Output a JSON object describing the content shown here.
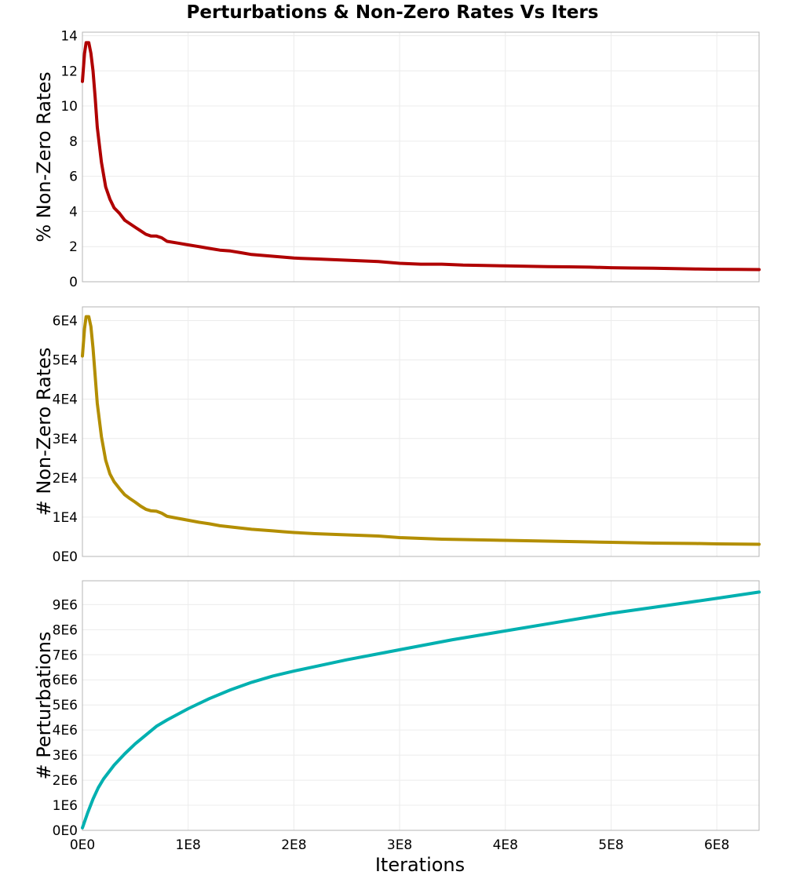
{
  "chart_data": {
    "title": "Perturbations & Non-Zero Rates Vs Iters",
    "type": "line",
    "xlabel": "Iterations",
    "x_ticks": [
      "0E0",
      "1E8",
      "2E8",
      "3E8",
      "4E8",
      "5E8",
      "6E8"
    ],
    "x_tick_values": [
      0,
      100000000,
      200000000,
      300000000,
      400000000,
      500000000,
      600000000
    ],
    "xlim": [
      0,
      640000000
    ],
    "grid": true,
    "panels": [
      {
        "ylabel": "% Non-Zero Rates",
        "ylim": [
          0,
          14.2
        ],
        "y_ticks": [
          "0",
          "2",
          "4",
          "6",
          "8",
          "10",
          "12",
          "14"
        ],
        "y_tick_values": [
          0,
          2,
          4,
          6,
          8,
          10,
          12,
          14
        ],
        "color": "#b00000",
        "series": [
          {
            "x": [
              0,
              2000000,
              3500000,
              6000000,
              8000000,
              10000000,
              12000000,
              14000000,
              18000000,
              22000000,
              26000000,
              30000000,
              35000000,
              40000000,
              45000000,
              50000000,
              55000000,
              60000000,
              65000000,
              70000000,
              75000000,
              80000000,
              90000000,
              100000000,
              110000000,
              120000000,
              130000000,
              140000000,
              150000000,
              160000000,
              170000000,
              180000000,
              190000000,
              200000000,
              220000000,
              240000000,
              260000000,
              280000000,
              300000000,
              320000000,
              340000000,
              360000000,
              380000000,
              400000000,
              420000000,
              440000000,
              460000000,
              480000000,
              500000000,
              520000000,
              540000000,
              560000000,
              580000000,
              600000000,
              620000000,
              640000000
            ],
            "y": [
              11.4,
              13.0,
              13.6,
              13.6,
              13.0,
              12.0,
              10.5,
              8.8,
              6.8,
              5.4,
              4.7,
              4.2,
              3.9,
              3.5,
              3.3,
              3.1,
              2.9,
              2.7,
              2.6,
              2.6,
              2.5,
              2.3,
              2.2,
              2.1,
              2.0,
              1.9,
              1.8,
              1.75,
              1.65,
              1.55,
              1.5,
              1.45,
              1.4,
              1.35,
              1.3,
              1.25,
              1.2,
              1.15,
              1.05,
              1.0,
              1.0,
              0.95,
              0.93,
              0.9,
              0.88,
              0.86,
              0.85,
              0.83,
              0.8,
              0.78,
              0.77,
              0.75,
              0.73,
              0.71,
              0.7,
              0.69
            ]
          }
        ]
      },
      {
        "ylabel": "# Non-Zero Rates",
        "ylim": [
          0,
          63500
        ],
        "y_ticks": [
          "0E0",
          "1E4",
          "2E4",
          "3E4",
          "4E4",
          "5E4",
          "6E4"
        ],
        "y_tick_values": [
          0,
          10000,
          20000,
          30000,
          40000,
          50000,
          60000
        ],
        "color": "#b38e00",
        "series": [
          {
            "x": [
              0,
              2000000,
              3500000,
              6000000,
              8000000,
              10000000,
              12000000,
              14000000,
              18000000,
              22000000,
              26000000,
              30000000,
              35000000,
              40000000,
              45000000,
              50000000,
              55000000,
              60000000,
              65000000,
              70000000,
              75000000,
              80000000,
              90000000,
              100000000,
              110000000,
              120000000,
              130000000,
              140000000,
              150000000,
              160000000,
              170000000,
              180000000,
              190000000,
              200000000,
              220000000,
              240000000,
              260000000,
              280000000,
              300000000,
              320000000,
              340000000,
              360000000,
              380000000,
              400000000,
              420000000,
              440000000,
              460000000,
              480000000,
              500000000,
              520000000,
              540000000,
              560000000,
              580000000,
              600000000,
              620000000,
              640000000
            ],
            "y": [
              51000,
              58000,
              61000,
              61000,
              58500,
              53000,
              46000,
              39000,
              30500,
              24500,
              21000,
              19000,
              17300,
              15700,
              14700,
              13800,
              12800,
              12000,
              11600,
              11500,
              11000,
              10200,
              9700,
              9200,
              8700,
              8300,
              7800,
              7500,
              7200,
              6900,
              6700,
              6500,
              6300,
              6100,
              5800,
              5600,
              5400,
              5200,
              4800,
              4600,
              4400,
              4300,
              4200,
              4100,
              4000,
              3900,
              3800,
              3700,
              3600,
              3500,
              3400,
              3350,
              3300,
              3200,
              3150,
              3100
            ]
          }
        ]
      },
      {
        "ylabel": "# Perturbations",
        "ylim": [
          0,
          9950000
        ],
        "y_ticks": [
          "0E0",
          "1E6",
          "2E6",
          "3E6",
          "4E6",
          "5E6",
          "6E6",
          "7E6",
          "8E6",
          "9E6"
        ],
        "y_tick_values": [
          0,
          1000000,
          2000000,
          3000000,
          4000000,
          5000000,
          6000000,
          7000000,
          8000000,
          9000000
        ],
        "color": "#00b0b0",
        "series": [
          {
            "x": [
              0,
              5000000,
              10000000,
              15000000,
              20000000,
              30000000,
              40000000,
              50000000,
              60000000,
              70000000,
              80000000,
              100000000,
              120000000,
              140000000,
              160000000,
              180000000,
              200000000,
              250000000,
              300000000,
              350000000,
              400000000,
              450000000,
              500000000,
              550000000,
              600000000,
              640000000
            ],
            "y": [
              100000,
              700000,
              1250000,
              1700000,
              2050000,
              2600000,
              3050000,
              3450000,
              3800000,
              4150000,
              4400000,
              4850000,
              5250000,
              5600000,
              5900000,
              6150000,
              6350000,
              6800000,
              7200000,
              7600000,
              7950000,
              8300000,
              8650000,
              8950000,
              9250000,
              9500000
            ]
          }
        ]
      }
    ]
  }
}
